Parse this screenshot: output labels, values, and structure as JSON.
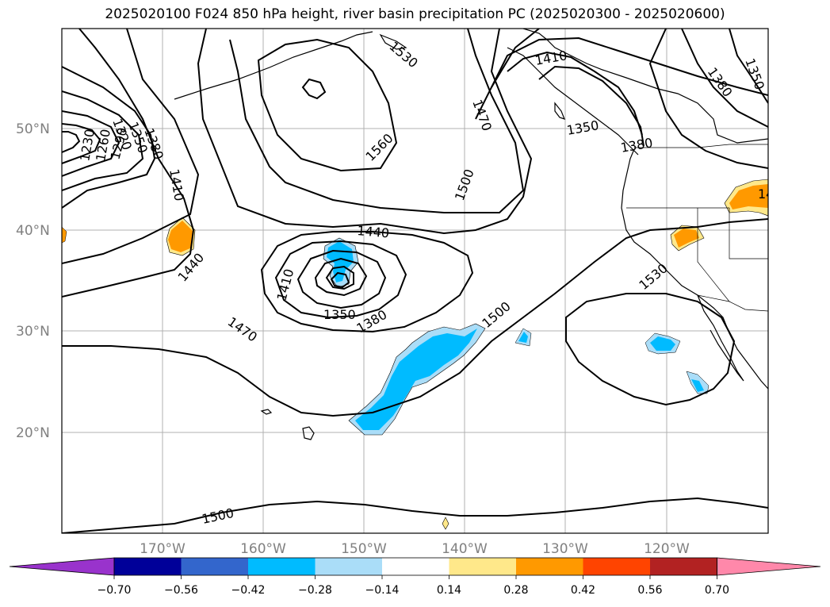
{
  "title": "2025020100 F024 850 hPa height, river basin precipitation PC (2025020300 - 2025020600)",
  "lat_labels": [
    "50°N",
    "40°N",
    "30°N",
    "20°N"
  ],
  "lon_labels": [
    "170°W",
    "160°W",
    "150°W",
    "140°W",
    "130°W",
    "120°W"
  ],
  "contour_labels": [
    "1230",
    "1260",
    "1290",
    "1320",
    "1350",
    "1380",
    "1410",
    "1440",
    "1530",
    "1560",
    "1500",
    "1470",
    "1410",
    "1350",
    "1380",
    "1440",
    "1410",
    "1350",
    "1380",
    "1470",
    "1500",
    "1530",
    "1500",
    "1380",
    "1350",
    "14"
  ],
  "colorbar": {
    "ticks": [
      "−0.70",
      "−0.56",
      "−0.42",
      "−0.28",
      "−0.14",
      "0.14",
      "0.28",
      "0.42",
      "0.56",
      "0.70"
    ],
    "colors": [
      "#9933cc",
      "#000099",
      "#3366cc",
      "#00bbff",
      "#aaddf8",
      "#ffffff",
      "#ffe88a",
      "#ff9900",
      "#ff4400",
      "#b22222",
      "#ff88aa"
    ]
  },
  "colors": {
    "negative_fill": "#00bbff",
    "negative_light": "#aaddf8",
    "positive_fill": "#ff9900",
    "positive_light": "#ffe88a",
    "grid": "#b0b0b0",
    "contour": "#000000"
  }
}
